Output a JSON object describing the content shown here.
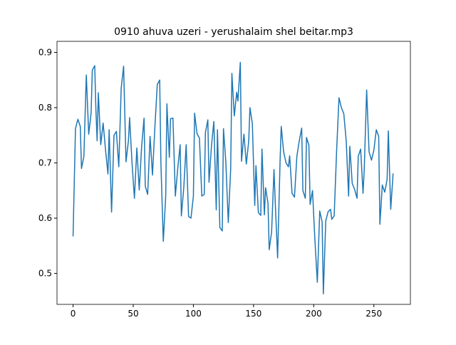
{
  "chart_data": {
    "type": "line",
    "title": "0910 ahuva uzeri - yerushalaim shel beitar.mp3",
    "x": [
      0,
      2,
      4,
      6,
      7,
      9,
      11,
      13,
      15,
      16,
      18,
      19,
      20,
      21,
      23,
      25,
      27,
      29,
      30,
      32,
      34,
      36,
      38,
      40,
      42,
      44,
      46,
      47,
      49,
      51,
      53,
      55,
      57,
      59,
      60,
      62,
      64,
      66,
      68,
      70,
      72,
      73,
      75,
      77,
      78,
      80,
      81,
      83,
      85,
      87,
      89,
      90,
      92,
      94,
      96,
      98,
      100,
      101,
      103,
      105,
      107,
      109,
      110,
      112,
      113,
      115,
      117,
      119,
      120,
      122,
      124,
      125,
      127,
      129,
      131,
      132,
      134,
      136,
      137,
      139,
      140,
      142,
      144,
      146,
      147,
      149,
      151,
      152,
      154,
      156,
      157,
      159,
      160,
      162,
      163,
      165,
      167,
      168,
      170,
      172,
      173,
      175,
      177,
      179,
      180,
      182,
      184,
      186,
      188,
      190,
      191,
      193,
      194,
      196,
      197,
      199,
      201,
      203,
      205,
      207,
      208,
      210,
      212,
      214,
      215,
      217,
      219,
      221,
      223,
      225,
      227,
      229,
      230,
      232,
      234,
      236,
      237,
      239,
      241,
      242,
      244,
      246,
      248,
      250,
      252,
      254,
      255,
      257,
      259,
      261,
      262,
      264,
      266
    ],
    "series": [
      {
        "color": "#1f77b4",
        "values": [
          0.567,
          0.762,
          0.779,
          0.766,
          0.69,
          0.712,
          0.859,
          0.752,
          0.79,
          0.868,
          0.876,
          0.795,
          0.74,
          0.827,
          0.733,
          0.772,
          0.723,
          0.68,
          0.76,
          0.611,
          0.75,
          0.757,
          0.693,
          0.835,
          0.875,
          0.702,
          0.74,
          0.782,
          0.7,
          0.636,
          0.727,
          0.651,
          0.73,
          0.781,
          0.658,
          0.643,
          0.748,
          0.678,
          0.765,
          0.842,
          0.85,
          0.7,
          0.558,
          0.64,
          0.807,
          0.71,
          0.78,
          0.781,
          0.64,
          0.69,
          0.733,
          0.604,
          0.655,
          0.733,
          0.603,
          0.6,
          0.64,
          0.79,
          0.753,
          0.745,
          0.64,
          0.643,
          0.755,
          0.778,
          0.665,
          0.73,
          0.775,
          0.615,
          0.76,
          0.583,
          0.577,
          0.762,
          0.7,
          0.592,
          0.69,
          0.862,
          0.785,
          0.828,
          0.812,
          0.882,
          0.703,
          0.752,
          0.698,
          0.74,
          0.8,
          0.771,
          0.623,
          0.695,
          0.61,
          0.605,
          0.725,
          0.606,
          0.655,
          0.627,
          0.543,
          0.575,
          0.688,
          0.63,
          0.528,
          0.7,
          0.766,
          0.72,
          0.7,
          0.693,
          0.713,
          0.645,
          0.638,
          0.712,
          0.74,
          0.763,
          0.65,
          0.636,
          0.746,
          0.732,
          0.625,
          0.65,
          0.56,
          0.484,
          0.613,
          0.593,
          0.463,
          0.595,
          0.612,
          0.616,
          0.598,
          0.604,
          0.72,
          0.818,
          0.8,
          0.789,
          0.74,
          0.64,
          0.73,
          0.663,
          0.652,
          0.636,
          0.712,
          0.725,
          0.645,
          0.689,
          0.832,
          0.72,
          0.705,
          0.723,
          0.76,
          0.748,
          0.589,
          0.66,
          0.647,
          0.67,
          0.758,
          0.616,
          0.681
        ]
      }
    ],
    "xlim": [
      -13.35,
      280.35
    ],
    "xticks": [
      0,
      50,
      100,
      150,
      200,
      250
    ],
    "ylim": [
      0.444,
      0.92
    ],
    "yticks": [
      0.5,
      0.6,
      0.7,
      0.8,
      0.9
    ]
  }
}
